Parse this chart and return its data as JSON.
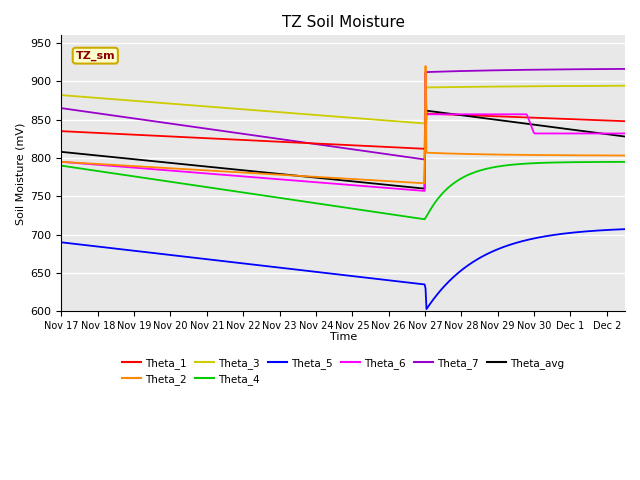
{
  "title": "TZ Soil Moisture",
  "xlabel": "Time",
  "ylabel": "Soil Moisture (mV)",
  "ylim": [
    600,
    960
  ],
  "yticks": [
    600,
    650,
    700,
    750,
    800,
    850,
    900,
    950
  ],
  "legend_label": "TZ_sm",
  "legend_label_color": "#8b0000",
  "legend_label_bg": "#ffffcc",
  "legend_label_edge": "#ccaa00",
  "colors": {
    "Theta_1": "#ff0000",
    "Theta_2": "#ff8800",
    "Theta_3": "#cccc00",
    "Theta_4": "#00cc00",
    "Theta_5": "#0000ff",
    "Theta_6": "#ff00ff",
    "Theta_7": "#9900cc",
    "Theta_avg": "#000000"
  },
  "bg_color": "#e8e8e8",
  "fig_bg": "#ffffff",
  "event_day": 10.0,
  "total_days": 15.5,
  "n_points": 600
}
